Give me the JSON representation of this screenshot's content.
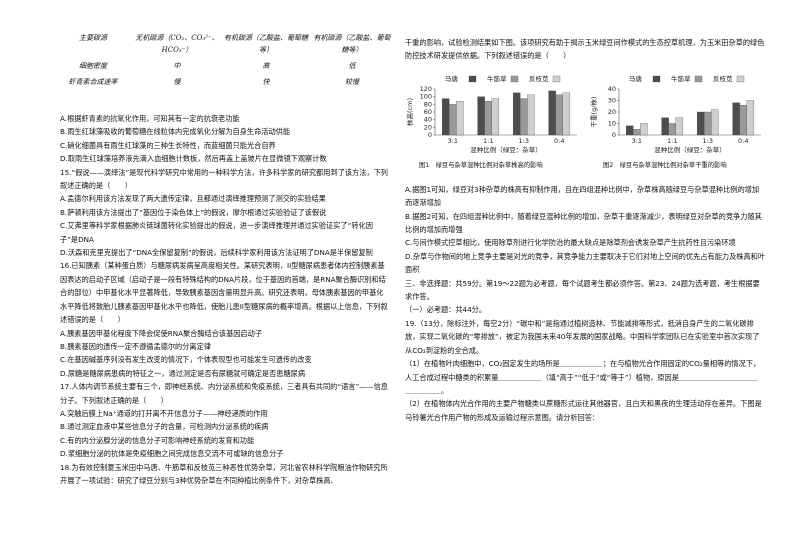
{
  "table": {
    "rows": [
      [
        "主要碳源",
        "无机碳源（CO₂、CO₃²⁻、HCO₃⁻）",
        "有机碳源（乙酸盐、葡萄糖等）",
        "有机碳源（乙酸盐、葡萄糖等）"
      ],
      [
        "细胞密度",
        "中",
        "高",
        "低"
      ],
      [
        "虾青素合成速率",
        "慢",
        "快",
        "较慢"
      ]
    ]
  },
  "left": [
    {
      "options": [
        "A.根据虾青素的抗氧化作用，可知其有一定的抗衰老功能",
        "B.雨生红球藻吸收的葡萄糖在线粒体内完成氧化分解为自身生命活动供能",
        "C.硝化细菌具有雨生红球藻的三种生长特性，而蓝细菌只能光合自养",
        "D.取雨生红球藻培养液先滴入血细胞计数板，然后再盖上盖玻片在显微镜下观察计数"
      ]
    },
    {
      "stem": "15.“假说——演绎法”是现代科学研究中常用的一种科学方法，许多科学家的研究都用到了该方法，下列叙述正确的是（　　）",
      "options": [
        "A.孟德尔利用该方法发现了两大遗传定律，且都通过演绎推理预测了测交的实验结果",
        "B.萨顿利用该方法提出了“基因位于染色体上”的假说，摩尔根通过实验验证了该假说",
        "C.艾弗里等科学家根据肺炎链球菌转化实验提出的假说，进一步演绎推理并通过实验证实了“转化因子”是DNA",
        "D.沃森和克里克提出了“DNA全保留复制”的假说，后续科学家利用该方法证明了DNA是半保留复制"
      ]
    },
    {
      "stem": "16.已知胰素（某种蛋白质）与糖尿病发病呈高度相关性。某研究表明，II型糖尿病患者体内控制胰素基因表达的启动子区域（启动子是一段有特殊结构的DNA片段，位于基因的首端，是RNA聚合酶识别和结合的部位）中甲基化水平显著降低，导致胰素基因含量明显升高。研究还表明，母体胰素基因的甲基化水平降低将致胎儿胰素基因甲基化水平也降低，使胎儿患II型糖尿病的概率增高。根据以上信息，下列叙述错误的是（　　）",
      "options": [
        "A.胰素基因甲基化程度下降会促使RNA聚合酶结合该基因启动子",
        "B.胰素基因的遗传一定不遵循孟德尔的分离定律",
        "C.在基因碱基序列没有发生改变的情况下，个体表现型也可能发生可遗传的改变",
        "D.尿糖是糖尿病患病的特征之一，通过测定是否有尿糖就可确定是否患糖尿病"
      ]
    },
    {
      "stem": "17.人体内调节系统主要有三个，即神经系统、内分泌系统和免疫系统，三者具有共同的“语言”——信息分子。下列叙述正确的是（　　）",
      "options": [
        "A.突触后膜上Na⁺通道的打开离不开信息分子——神经递质的作用",
        "B.通过测定血液中某些信息分子的含量，可检测内分泌系统的疾病",
        "C.有的内分泌腺分泌的信息分子可影响神经系统的发育和功能",
        "D.浆细胞分泌的抗体是免疫细胞之间完成信息交流不可或缺的信息分子"
      ]
    },
    {
      "stem": "18.为有效控制夏玉米田中马唐、牛筋草和反枝苋三种恶性优势杂草，河北省农林科学院粮油作物研究所开展了一项试验：研究了绿豆分别与3种优势杂草在不同种植比例条件下，对杂草株高、"
    }
  ],
  "right": {
    "intro": "干重的影响，试验检测结果如下图。该项研究有助于揭示玉米绿豆间作模式的生态控草机理，为玉米田杂草的绿色防控技术研发提供依据。下列叙述错误的是（　　）",
    "figures": [
      {
        "type": "bar",
        "title": "图1　绿豆与杂草混种比例对杂草株高的影响",
        "ylabel": "株高(cm)",
        "xlabel": "混种比例（绿豆：杂草）",
        "categories": [
          "3:1",
          "1:1",
          "1:3",
          "0:4"
        ],
        "series": [
          {
            "name": "马唐",
            "color": "#4d4d4d",
            "values": [
              95,
              100,
              110,
              115
            ]
          },
          {
            "name": "牛筋草",
            "color": "#9a9a9a",
            "values": [
              80,
              88,
              95,
              105
            ]
          },
          {
            "name": "反枝苋",
            "color": "#cfcfcf",
            "values": [
              88,
              95,
              105,
              110
            ]
          }
        ],
        "ylim": [
          0,
          120
        ],
        "yticks": [
          0,
          20,
          40,
          60,
          80,
          100,
          120
        ]
      },
      {
        "type": "bar",
        "title": "图2　绿豆与杂草混种比例对杂草干重的影响",
        "ylabel": "干重(g/株)",
        "xlabel": "混种比例（绿豆：杂草）",
        "categories": [
          "3:1",
          "1:1",
          "1:3",
          "0:4"
        ],
        "series": [
          {
            "name": "马唐",
            "color": "#4d4d4d",
            "values": [
              8,
              15,
              20,
              28
            ]
          },
          {
            "name": "牛筋草",
            "color": "#9a9a9a",
            "values": [
              5,
              10,
              20,
              26
            ]
          },
          {
            "name": "反枝苋",
            "color": "#cfcfcf",
            "values": [
              10,
              15,
              22,
              30
            ]
          }
        ],
        "ylim": [
          0,
          40
        ],
        "yticks": [
          0,
          10,
          20,
          30,
          40
        ]
      }
    ],
    "options": [
      "A.据图1可知，绿豆对3种杂草的株高有抑制作用，且在四组混种比例中，杂草株高随绿豆与杂草混种比例的增加而逐渐增加",
      "B.据图2可知，在四组混种比例中，随着绿豆混种比例的增加，杂草干重逐渐减少，表明绿豆对杂草的竞争力随其比例的增加而增强",
      "C.与间作模式控草相比，使用除草剂进行化学防治的最大缺点是除草剂会诱发杂草产生抗药性且污染环境",
      "D.杂草与作物间的地上竞争主要是对光的竞争，其竞争能力主要取决于它们对地上空间的优先占有能力及株高和叶面积"
    ],
    "section": "三、非选择题：共59分。第19～22题为必考题，每个试题考生都必须作答。第23、24题为选考题，考生根据要求作答。",
    "subsection": "（一）必考题：共44分。",
    "q19": "19.（13分，除标注外，每空2分）“碳中和”是指通过植树造林、节能减排等形式，抵消自身产生的二氧化碳排放，实现二氧化碳的“零排放”，被定为我国未来40年发展的国家战略。中国科学家团队已在实验室中首次实现了从CO₂到淀粉的全合成。",
    "parts": [
      "（1）在植物叶肉细胞中，CO₂固定发生的场所是＿＿＿＿＿＿；在与植物光合作用固定的CO₂量相等的情况下，人工合成过程中糖类的积累量＿＿＿＿＿＿（填“高于”“低于”或“等于”）植物，原因是＿＿＿＿＿＿＿＿＿＿＿＿＿＿＿＿。",
      "（2）在植物体内光合作用的主要产物糖类以蔗糖形式运往其他器官，且白天和黑夜的生理活动存在差异。下图是马铃薯光合作用产物的形成及运输过程示意图。请分析回答："
    ]
  }
}
